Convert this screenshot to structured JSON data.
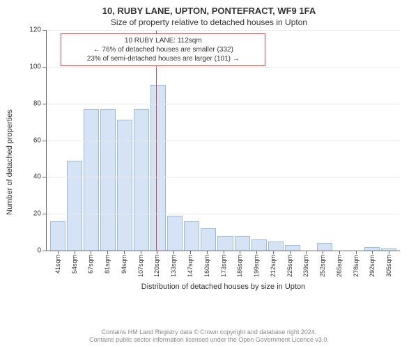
{
  "title": "10, RUBY LANE, UPTON, PONTEFRACT, WF9 1FA",
  "subtitle": "Size of property relative to detached houses in Upton",
  "y_axis_label": "Number of detached properties",
  "x_axis_label": "Distribution of detached houses by size in Upton",
  "attribution_line1": "Contains HM Land Registry data © Crown copyright and database right 2024.",
  "attribution_line2": "Contains public sector information licensed under the Open Government Licence v3.0.",
  "annotation": {
    "title": "10 RUBY LANE: 112sqm",
    "line2": "← 76% of detached houses are smaller (332)",
    "line3": "23% of semi-detached houses are larger (101) →"
  },
  "chart": {
    "type": "histogram",
    "ylim": [
      0,
      120
    ],
    "ytick_step": 20,
    "bar_fill": "#d5e3f5",
    "bar_border": "#9abae0",
    "grid_color": "#e8e8e8",
    "axis_color": "#666666",
    "marker_color": "#d04a4a",
    "marker_x_percent": 31,
    "categories": [
      "41sqm",
      "54sqm",
      "67sqm",
      "81sqm",
      "94sqm",
      "107sqm",
      "120sqm",
      "133sqm",
      "147sqm",
      "160sqm",
      "173sqm",
      "186sqm",
      "199sqm",
      "212sqm",
      "225sqm",
      "239sqm",
      "252sqm",
      "265sqm",
      "278sqm",
      "292sqm",
      "305sqm"
    ],
    "values": [
      16,
      49,
      77,
      77,
      71,
      77,
      90,
      19,
      16,
      12,
      8,
      8,
      6,
      5,
      3,
      0,
      4,
      0,
      0,
      2,
      1
    ]
  }
}
